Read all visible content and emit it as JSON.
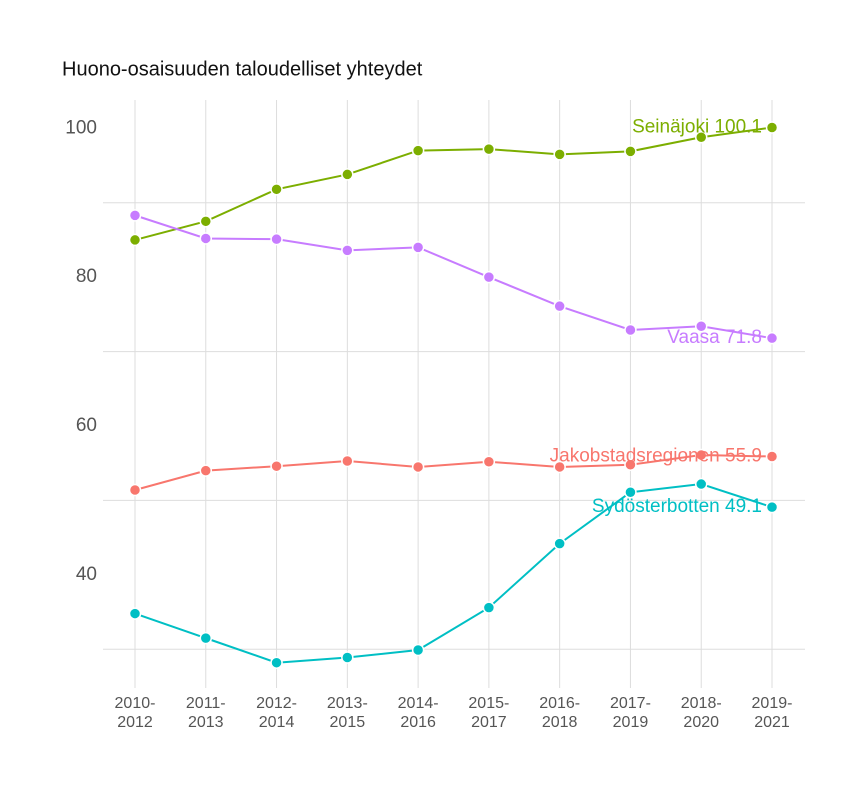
{
  "chart_data": {
    "type": "line",
    "title": "Huono-osaisuuden taloudelliset yhteydet",
    "categories": [
      "2010-2012",
      "2011-2013",
      "2012-2014",
      "2013-2015",
      "2014-2016",
      "2015-2017",
      "2016-2018",
      "2017-2019",
      "2018-2020",
      "2019-2021"
    ],
    "series": [
      {
        "name": "Seinäjoki 100.1",
        "color": "#7CAE00",
        "values": [
          85.0,
          87.5,
          91.8,
          93.8,
          97.0,
          97.2,
          96.5,
          96.9,
          98.8,
          100.1
        ]
      },
      {
        "name": "Vaasa 71.8",
        "color": "#C77CFF",
        "values": [
          88.3,
          85.2,
          85.1,
          83.6,
          84.0,
          80.0,
          76.1,
          72.9,
          73.4,
          71.8
        ]
      },
      {
        "name": "Jakobstadsregionen 55.9",
        "color": "#F8766D",
        "values": [
          51.4,
          54.0,
          54.6,
          55.3,
          54.5,
          55.2,
          54.5,
          54.8,
          56.1,
          55.9
        ]
      },
      {
        "name": "Sydösterbotten 49.1",
        "color": "#00BFC4",
        "values": [
          34.8,
          31.5,
          28.2,
          28.9,
          29.9,
          35.6,
          44.2,
          51.1,
          52.2,
          49.1
        ]
      }
    ],
    "ylim": [
      24.8,
      103.8
    ],
    "yticks": [
      40,
      60,
      80,
      100
    ],
    "grid_yticks": [
      30,
      50,
      70,
      90
    ],
    "grid": true
  }
}
